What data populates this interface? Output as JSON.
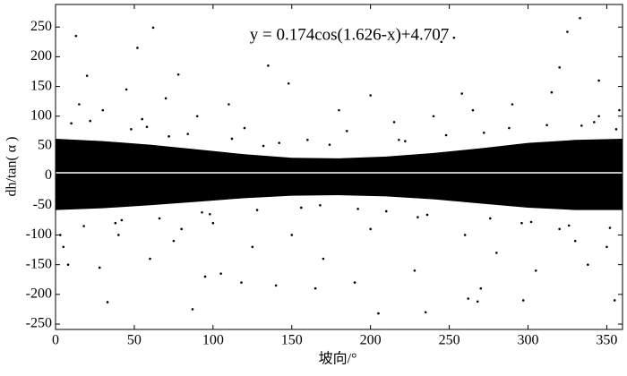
{
  "chart_data": {
    "type": "scatter",
    "annotation": "y = 0.174cos(1.626-x)+4.707",
    "xlabel": "坡向/°",
    "ylabel": "dh/tan( α )",
    "color": "#000000",
    "xlim": [
      0,
      360
    ],
    "ylim": [
      -259,
      288
    ],
    "xticks": [
      0,
      50,
      100,
      150,
      200,
      250,
      300,
      350
    ],
    "yticks": [
      -250,
      -200,
      -150,
      -100,
      -50,
      0,
      50,
      100,
      150,
      200,
      250
    ],
    "x": [
      13,
      33,
      52,
      62,
      20,
      78,
      87,
      135,
      148,
      140,
      165,
      200,
      205,
      235,
      245,
      253,
      258,
      262,
      268,
      270,
      297,
      320,
      325,
      333,
      345,
      355,
      8,
      5,
      28,
      40,
      60,
      95,
      105,
      118,
      70,
      45,
      110,
      180,
      190,
      215,
      228,
      280,
      305,
      338,
      350,
      15,
      30,
      55,
      90,
      125,
      170,
      240,
      290,
      315,
      358,
      3,
      75,
      150,
      260,
      330,
      100,
      200,
      345,
      120,
      230,
      185,
      265,
      80,
      320,
      160,
      210,
      10,
      22,
      38,
      48,
      66,
      84,
      98,
      112,
      128,
      142,
      156,
      174,
      192,
      218,
      236,
      248,
      276,
      288,
      302,
      312,
      326,
      342,
      352,
      18,
      42,
      58,
      72,
      93,
      132,
      168,
      222,
      272,
      296,
      334,
      356
    ],
    "y": [
      235,
      -213,
      215,
      249,
      168,
      170,
      -225,
      185,
      155,
      -185,
      -190,
      135,
      -232,
      -230,
      225,
      232,
      138,
      -207,
      -212,
      -190,
      -210,
      182,
      242,
      265,
      160,
      -210,
      -150,
      -120,
      -155,
      -100,
      -140,
      -170,
      -165,
      -180,
      130,
      145,
      120,
      110,
      -180,
      90,
      -160,
      -130,
      -160,
      -150,
      -120,
      120,
      110,
      95,
      100,
      -120,
      -140,
      100,
      120,
      140,
      110,
      -100,
      -110,
      -100,
      -100,
      -110,
      -80,
      -90,
      100,
      80,
      -70,
      75,
      110,
      -90,
      -90,
      60,
      -60,
      88,
      92,
      -80,
      78,
      -72,
      70,
      -65,
      62,
      -58,
      55,
      -54,
      52,
      -56,
      60,
      -66,
      68,
      -72,
      80,
      -78,
      85,
      -84,
      90,
      -88,
      -85,
      -75,
      82,
      66,
      -62,
      50,
      -50,
      58,
      72,
      -80,
      84,
      78
    ],
    "band": {
      "x": [
        0,
        30,
        60,
        90,
        120,
        150,
        180,
        210,
        240,
        270,
        300,
        330,
        360
      ],
      "upper": [
        62,
        58,
        52,
        44,
        36,
        30,
        29,
        32,
        38,
        46,
        55,
        60,
        62
      ],
      "lower": [
        -58,
        -55,
        -50,
        -44,
        -38,
        -34,
        -33,
        -35,
        -40,
        -47,
        -54,
        -58,
        -58
      ]
    },
    "fit": {
      "color": "#ffffff",
      "x": [
        0,
        90,
        180,
        270,
        360
      ],
      "values": [
        4.7,
        4.7,
        4.7,
        4.7,
        4.7
      ]
    }
  }
}
